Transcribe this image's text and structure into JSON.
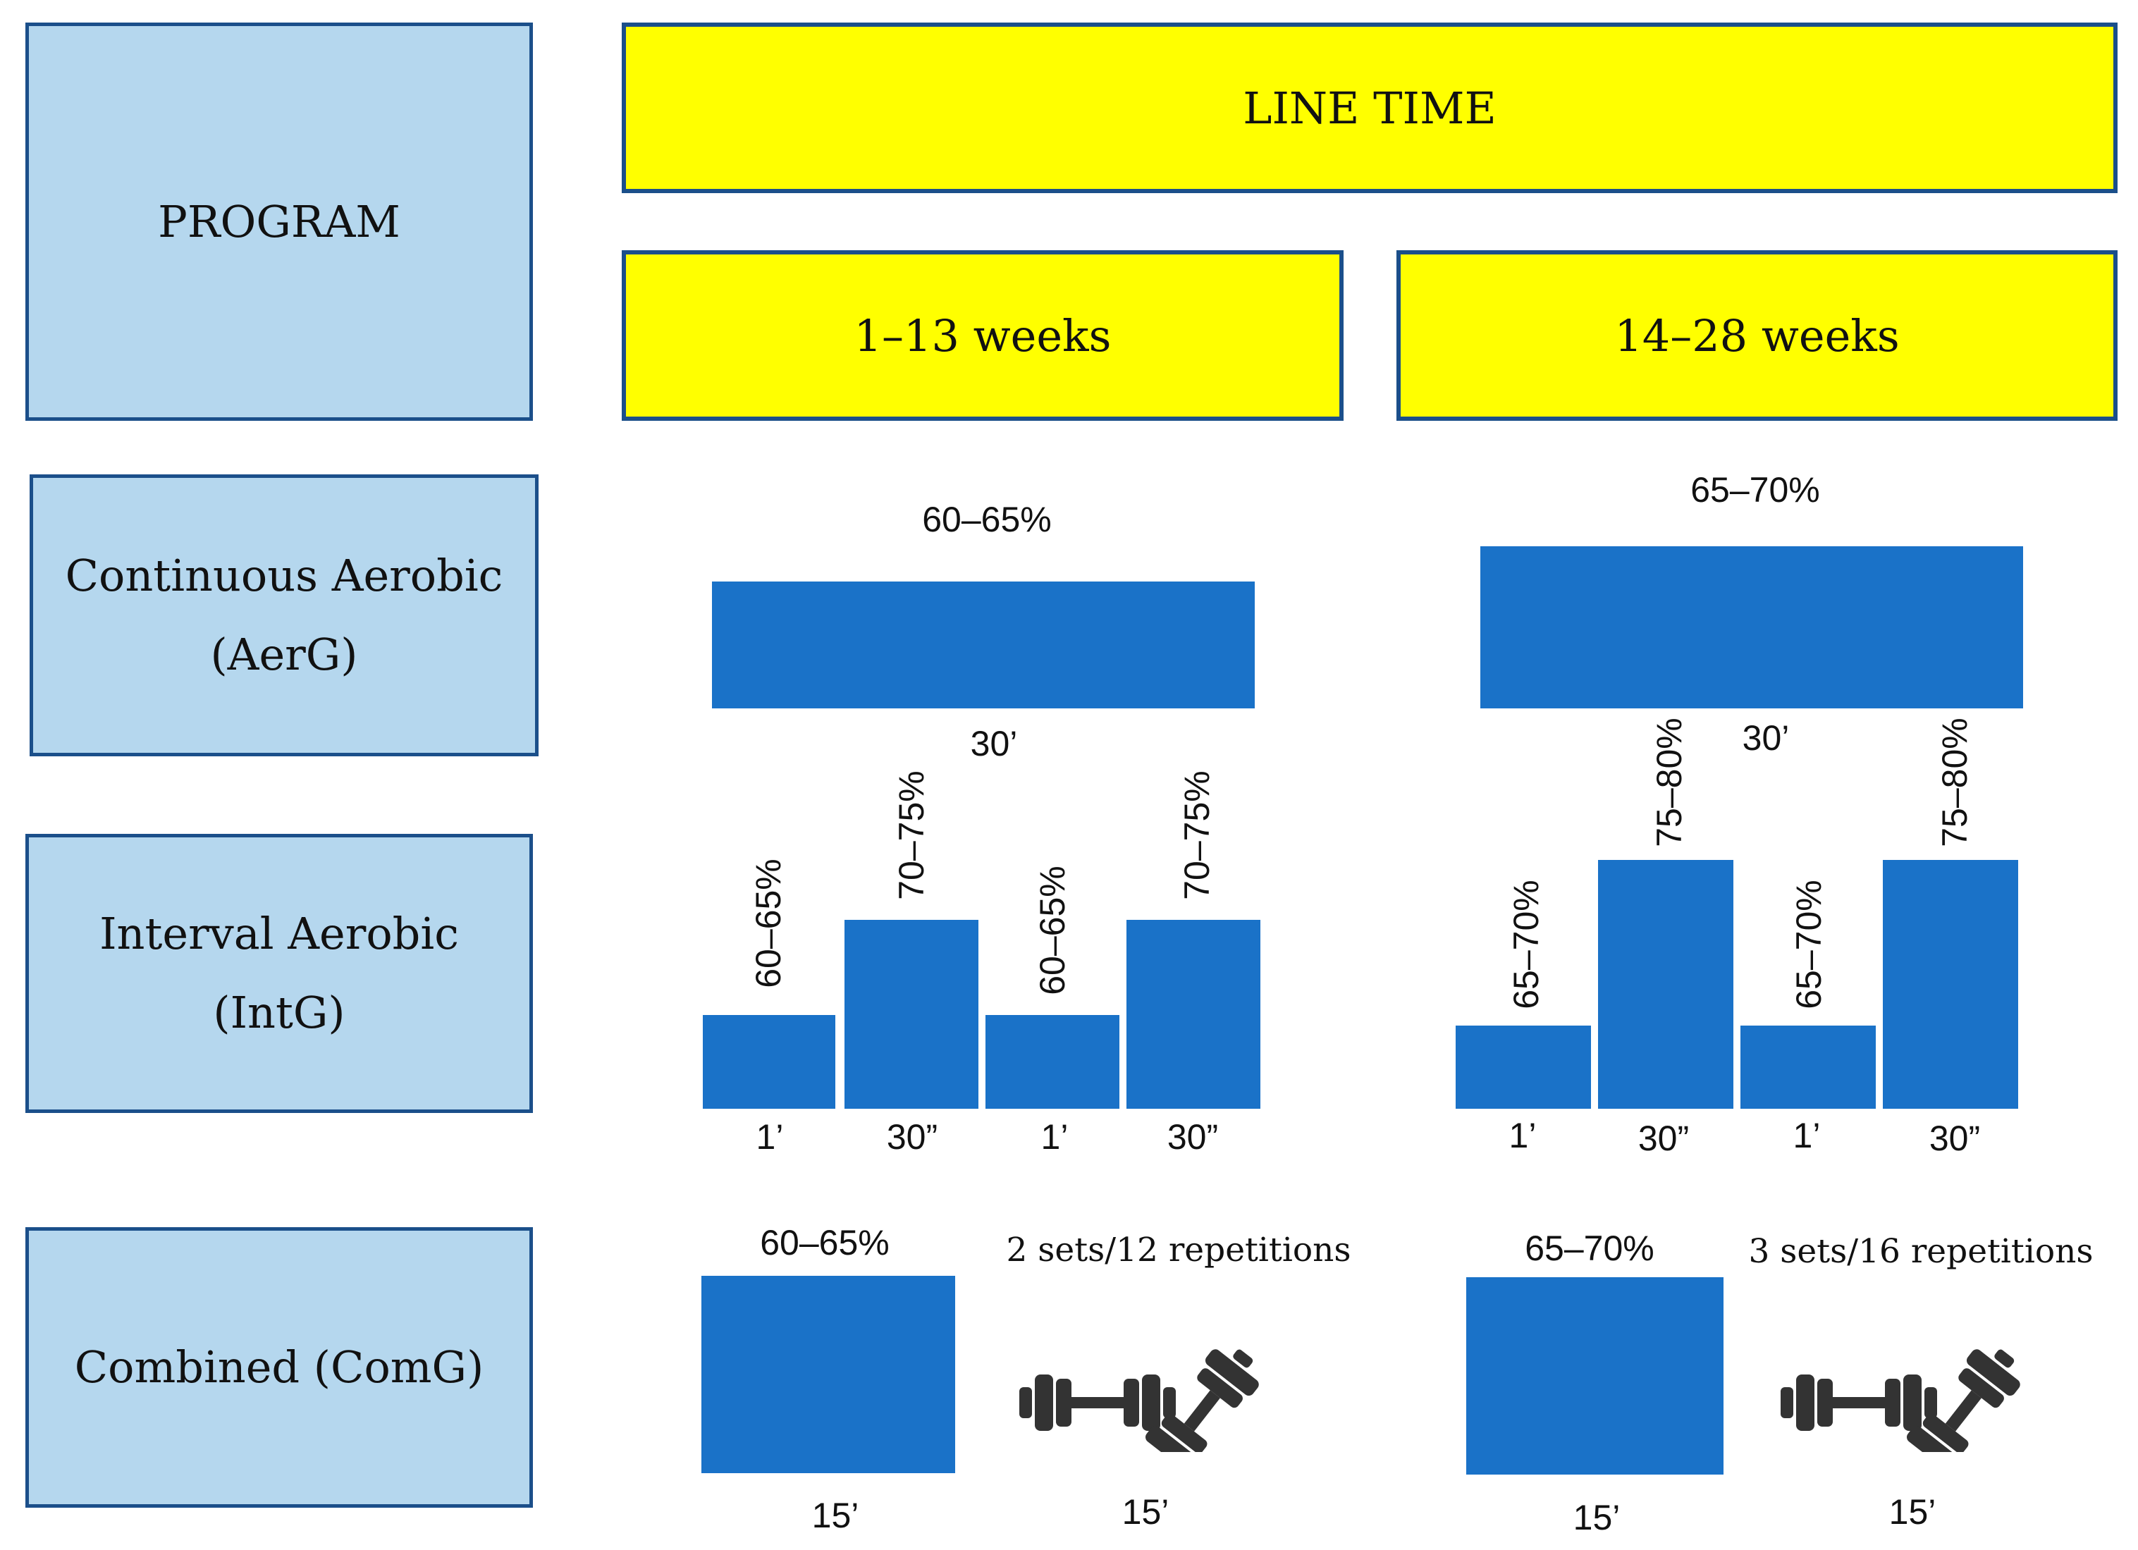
{
  "header": {
    "program": "PROGRAM",
    "line_time": "LINE TIME",
    "period1": "1–13 weeks",
    "period2": "14–28 weeks"
  },
  "rows": {
    "continuous": {
      "line1": "Continuous Aerobic",
      "line2": "(AerG)"
    },
    "interval": {
      "line1": "Interval Aerobic",
      "line2": "(IntG)"
    },
    "combined": {
      "label": "Combined (ComG)"
    }
  },
  "continuous": {
    "p1": {
      "intensity": "60–65%",
      "duration": "30’"
    },
    "p2": {
      "intensity": "65–70%",
      "duration": "30’"
    }
  },
  "interval": {
    "p1": {
      "low_intensity": "60–65%",
      "high_intensity": "70–75%",
      "low_duration": "1’",
      "high_duration": "30”"
    },
    "p2": {
      "low_intensity": "65–70%",
      "high_intensity": "75–80%",
      "low_duration": "1’",
      "high_duration": "30”"
    }
  },
  "combined": {
    "p1": {
      "intensity": "60–65%",
      "aerobic_duration": "15’",
      "strength": "2 sets/12 repetitions",
      "strength_duration": "15’"
    },
    "p2": {
      "intensity": "65–70%",
      "aerobic_duration": "15’",
      "strength": "3 sets/16 repetitions",
      "strength_duration": "15’"
    }
  },
  "colors": {
    "bar": "#1a72c8",
    "label_box": "#b5d7ee",
    "header_box": "#ffff00",
    "border": "#1b4f8a",
    "icon": "dumbbell-icon"
  }
}
